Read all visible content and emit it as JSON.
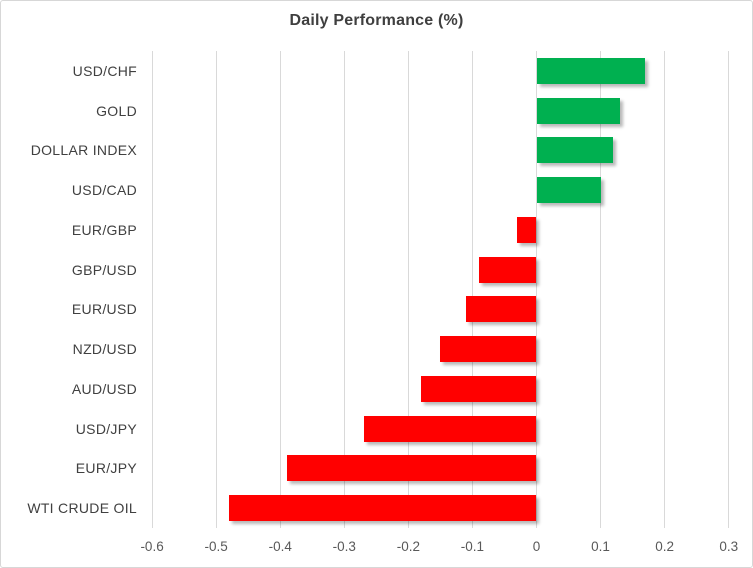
{
  "window": {
    "background": "#ffffff",
    "border_color": "#d7d7d7"
  },
  "chart_data": {
    "type": "bar",
    "orientation": "horizontal",
    "title": "Daily Performance (%)",
    "categories": [
      "USD/CHF",
      "GOLD",
      "DOLLAR INDEX",
      "USD/CAD",
      "EUR/GBP",
      "GBP/USD",
      "EUR/USD",
      "NZD/USD",
      "AUD/USD",
      "USD/JPY",
      "EUR/JPY",
      "WTI CRUDE OIL"
    ],
    "values": [
      0.17,
      0.13,
      0.12,
      0.1,
      -0.03,
      -0.09,
      -0.11,
      -0.15,
      -0.18,
      -0.27,
      -0.39,
      -0.48
    ],
    "xlim": [
      -0.6,
      0.3
    ],
    "x_ticks": [
      -0.6,
      -0.5,
      -0.4,
      -0.3,
      -0.2,
      -0.1,
      0,
      0.1,
      0.2,
      0.3
    ],
    "x_tick_labels": [
      "-0.6",
      "-0.5",
      "-0.4",
      "-0.3",
      "-0.2",
      "-0.1",
      "0",
      "0.1",
      "0.2",
      "0.3"
    ],
    "grid": true,
    "legend": "none",
    "positive_color": "#00B050",
    "negative_color": "#FF0000",
    "gridline_color": "#D9D9D9",
    "title_color": "#3F3F3F",
    "category_label_color": "#404040",
    "tick_label_color": "#595959"
  }
}
